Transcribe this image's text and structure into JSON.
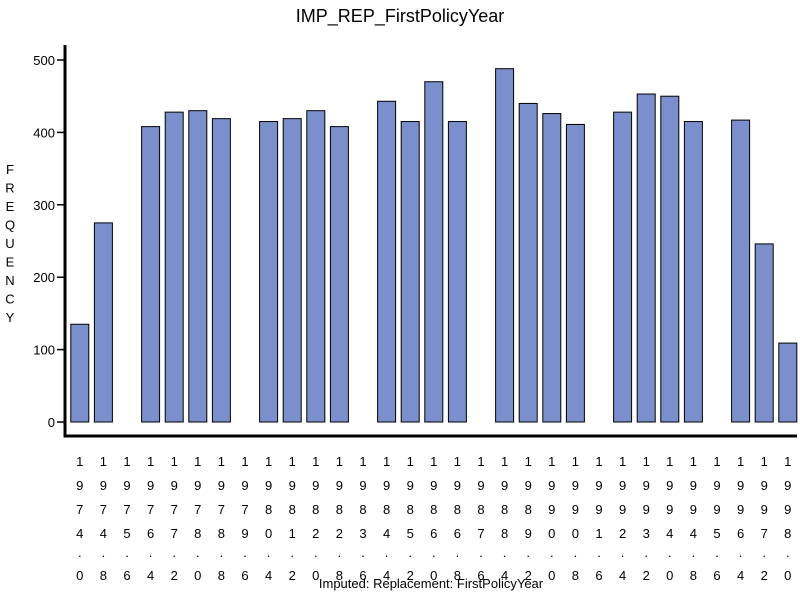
{
  "chart_data": {
    "type": "bar",
    "title": "IMP_REP_FirstPolicyYear",
    "xlabel": "Imputed: Replacement: FirstPolicyYear",
    "ylabel": "FREQUENCY",
    "ylim": [
      0,
      520
    ],
    "yticks": [
      0,
      100,
      200,
      300,
      400,
      500
    ],
    "grid": false,
    "categories": [
      "1974.0",
      "1974.8",
      "1975.6",
      "1976.4",
      "1977.2",
      "1978.0",
      "1978.8",
      "1979.6",
      "1980.4",
      "1981.2",
      "1982.0",
      "1982.8",
      "1983.6",
      "1984.4",
      "1985.2",
      "1986.0",
      "1986.8",
      "1987.6",
      "1988.4",
      "1989.2",
      "1990.0",
      "1990.8",
      "1991.6",
      "1992.4",
      "1993.2",
      "1994.0",
      "1994.8",
      "1995.6",
      "1996.4",
      "1997.2",
      "1998.0"
    ],
    "values": [
      135,
      275,
      0,
      408,
      428,
      430,
      419,
      0,
      415,
      419,
      430,
      408,
      0,
      443,
      415,
      470,
      415,
      0,
      488,
      440,
      426,
      411,
      0,
      428,
      453,
      450,
      415,
      0,
      417,
      246,
      109
    ]
  }
}
